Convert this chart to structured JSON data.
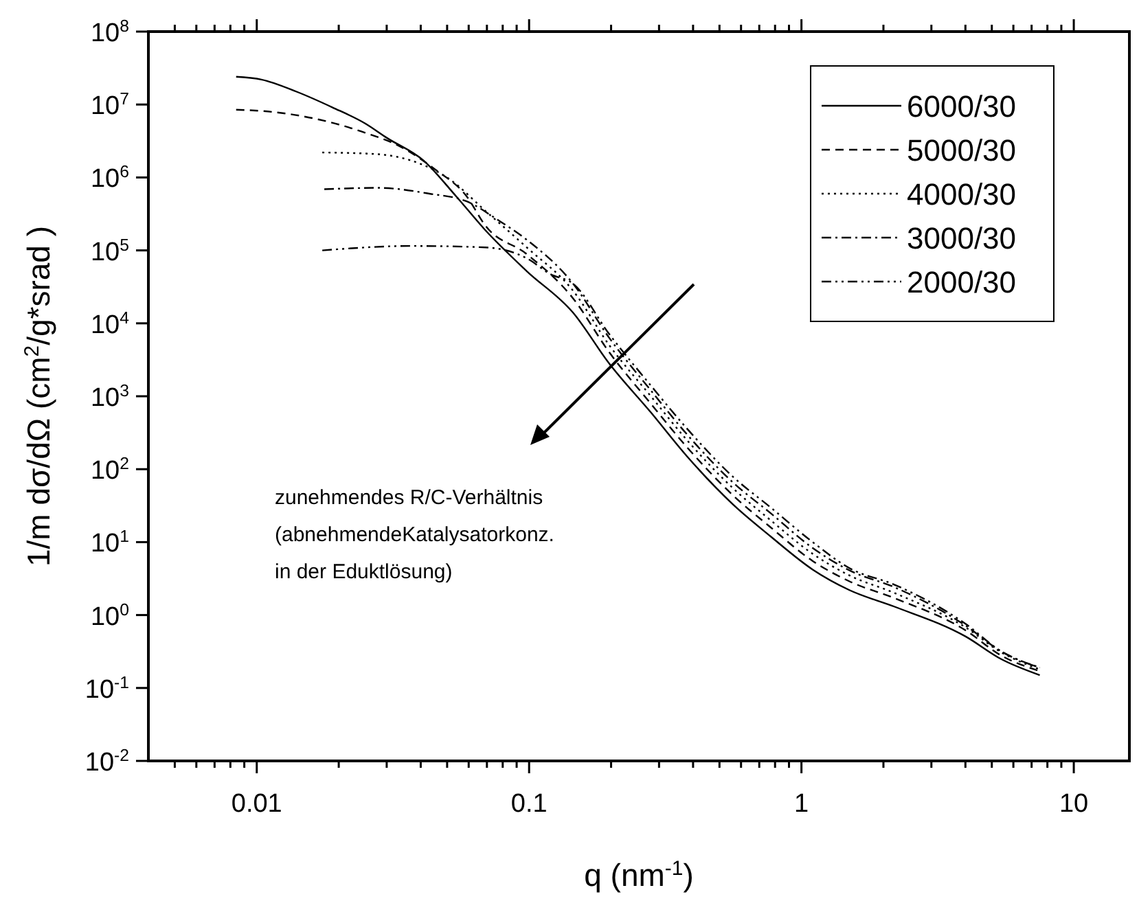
{
  "chart_data": {
    "type": "line",
    "xlabel": "q (nm$^{-1}$)",
    "ylabel": "1/m dσ/dΩ (cm$^{2}$/g*srad )",
    "log": "xy",
    "grid": false,
    "legend": "top right",
    "marker": "none",
    "xlim": [
      0.004,
      16
    ],
    "xticks": [
      {
        "value": 0.005,
        "label": null
      },
      {
        "value": 0.006,
        "label": null
      },
      {
        "value": 0.007,
        "label": null
      },
      {
        "value": 0.008,
        "label": null
      },
      {
        "value": 0.009,
        "label": null
      },
      0.01,
      {
        "value": 0.02,
        "label": null
      },
      {
        "value": 0.03,
        "label": null
      },
      {
        "value": 0.04,
        "label": null
      },
      {
        "value": 0.05,
        "label": null
      },
      {
        "value": 0.06,
        "label": null
      },
      {
        "value": 0.07,
        "label": null
      },
      {
        "value": 0.08,
        "label": null
      },
      {
        "value": 0.09,
        "label": null
      },
      0.1,
      {
        "value": 0.2,
        "label": null
      },
      {
        "value": 0.3,
        "label": null
      },
      {
        "value": 0.4,
        "label": null
      },
      {
        "value": 0.5,
        "label": null
      },
      {
        "value": 0.6,
        "label": null
      },
      {
        "value": 0.7,
        "label": null
      },
      {
        "value": 0.8,
        "label": null
      },
      {
        "value": 0.9,
        "label": null
      },
      1,
      {
        "value": 2,
        "label": null
      },
      {
        "value": 3,
        "label": null
      },
      {
        "value": 4,
        "label": null
      },
      {
        "value": 5,
        "label": null
      },
      {
        "value": 6,
        "label": null
      },
      {
        "value": 7,
        "label": null
      },
      {
        "value": 8,
        "label": null
      },
      {
        "value": 9,
        "label": null
      },
      10
    ],
    "ylim": [
      0.01,
      100000000
    ],
    "yticks": [
      {
        "value": 0.01,
        "label": "10$^{-2}$"
      },
      {
        "value": 0.1,
        "label": "10$^{-1}$"
      },
      {
        "value": 1,
        "label": "10$^{0}$"
      },
      {
        "value": 10,
        "label": "10$^{1}$"
      },
      {
        "value": 100,
        "label": "10$^{2}$"
      },
      {
        "value": 1000,
        "label": "10$^{3}$"
      },
      {
        "value": 10000,
        "label": "10$^{4}$"
      },
      {
        "value": 100000,
        "label": "10$^{5}$"
      },
      {
        "value": 1000000,
        "label": "10$^{6}$"
      },
      {
        "value": 10000000,
        "label": "10$^{7}$"
      },
      {
        "value": 100000000,
        "label": "10$^{8}$"
      }
    ],
    "series": [
      {
        "name": "6000/30",
        "color": "#000000",
        "line_style": "solid",
        "x": [
          0.0084,
          0.0104,
          0.014,
          0.019,
          0.025,
          0.03,
          0.041,
          0.054,
          0.069,
          0.098,
          0.145,
          0.197,
          0.28,
          0.38,
          0.56,
          0.77,
          1.1,
          1.5,
          2.2,
          4.0,
          5.4,
          7.5
        ],
        "values": [
          24000000,
          22000000,
          15000000,
          9100000,
          5500000,
          3500000,
          1700000,
          550000,
          190000,
          52000,
          14000,
          2800,
          600,
          150,
          33,
          12,
          4.2,
          2.2,
          1.3,
          0.51,
          0.25,
          0.15
        ]
      },
      {
        "name": "5000/30",
        "color": "#000000",
        "line_style": "dashed",
        "x": [
          0.0084,
          0.0115,
          0.017,
          0.025,
          0.034,
          0.045,
          0.059,
          0.069,
          0.098,
          0.145,
          0.197,
          0.28,
          0.38,
          0.56,
          0.77,
          1.1,
          1.5,
          2.2,
          4.0,
          5.4,
          7.5
        ],
        "values": [
          8500000,
          7900000,
          6200000,
          4100000,
          2600000,
          1300000,
          550000,
          220000,
          89000,
          22000,
          4000,
          790,
          200,
          44,
          16,
          5.5,
          2.9,
          1.7,
          0.62,
          0.28,
          0.17
        ]
      },
      {
        "name": "4000/30",
        "color": "#000000",
        "line_style": "dotted",
        "x": [
          0.0174,
          0.027,
          0.037,
          0.051,
          0.069,
          0.098,
          0.145,
          0.197,
          0.28,
          0.38,
          0.56,
          0.77,
          1.1,
          1.5,
          2.2,
          4.0,
          5.4,
          7.5
        ],
        "values": [
          2200000,
          2100000,
          1700000,
          950000,
          350000,
          110000,
          28000,
          5000,
          1000,
          250,
          55,
          20,
          6.9,
          3.5,
          2.0,
          0.68,
          0.31,
          0.18
        ]
      },
      {
        "name": "3000/30",
        "color": "#000000",
        "line_style": "dashdot",
        "x": [
          0.0177,
          0.028,
          0.043,
          0.059,
          0.077,
          0.098,
          0.145,
          0.197,
          0.28,
          0.38,
          0.56,
          0.77,
          1.1,
          1.5,
          2.2,
          4.0,
          5.4,
          7.5
        ],
        "values": [
          690000,
          720000,
          600000,
          470000,
          260000,
          140000,
          35000,
          6300,
          1200,
          300,
          66,
          25,
          8.3,
          4.1,
          2.4,
          0.72,
          0.32,
          0.19
        ]
      },
      {
        "name": "2000/30",
        "color": "#000000",
        "line_style": "dashdotdot",
        "x": [
          0.0174,
          0.037,
          0.069,
          0.098,
          0.12,
          0.145,
          0.197,
          0.28,
          0.38,
          0.56,
          0.77,
          1.1,
          1.5,
          2.2,
          4.0,
          5.4,
          7.5
        ],
        "values": [
          100000,
          115000,
          110000,
          78000,
          47000,
          35000,
          7100,
          1400,
          360,
          79,
          30,
          10,
          4.4,
          2.6,
          0.76,
          0.32,
          0.19
        ]
      }
    ],
    "annotations": [
      "zunehmendes R/C-Verhältnis",
      "(abnehmendeKatalysatorkonz.",
      "in der Eduktlösung)"
    ]
  }
}
